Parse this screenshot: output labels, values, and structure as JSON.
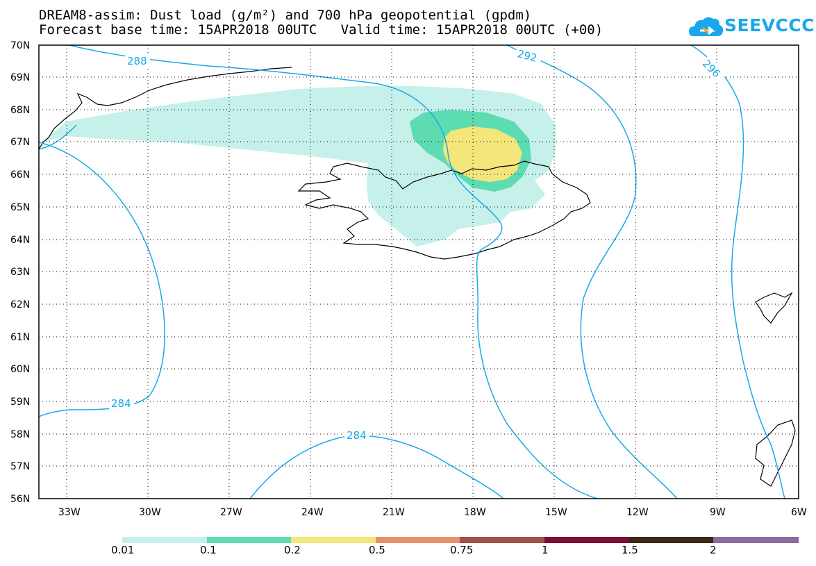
{
  "header": {
    "title_line1": "DREAM8-assim: Dust load (g/m²) and 700 hPa geopotential (gpdm)",
    "title_line2": "Forecast base time: 15APR2018 00UTC   Valid time: 15APR2018 00UTC (+00)"
  },
  "logo": {
    "text": "SEEVCCC",
    "icon": "cloud-logo-icon",
    "color": "#1aa7ec"
  },
  "map": {
    "lat_labels": [
      "70N",
      "69N",
      "68N",
      "67N",
      "66N",
      "65N",
      "64N",
      "63N",
      "62N",
      "61N",
      "60N",
      "59N",
      "58N",
      "57N",
      "56N"
    ],
    "lon_labels": [
      "33W",
      "30W",
      "27W",
      "24W",
      "21W",
      "18W",
      "15W",
      "12W",
      "9W",
      "6W"
    ],
    "contour_labels": [
      "288",
      "292",
      "296",
      "284",
      "284"
    ],
    "contour_color": "#1aa7ec",
    "coastline_color": "#000000",
    "land_shown": [
      "Iceland",
      "Greenland coast",
      "Faroe Islands",
      "Scotland coast"
    ]
  },
  "colorbar": {
    "colors": [
      "#c6f0ea",
      "#5cdcb0",
      "#f4e67a",
      "#e8906e",
      "#a05048",
      "#7a1030",
      "#3c2814",
      "#9068a0"
    ],
    "labels": [
      "0.01",
      "0.1",
      "0.2",
      "0.5",
      "0.75",
      "1",
      "1.5",
      "2"
    ]
  }
}
